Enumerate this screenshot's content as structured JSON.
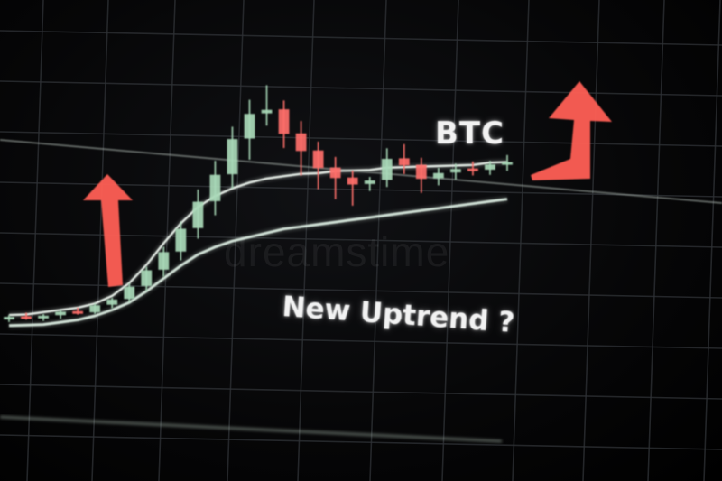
{
  "chart_data": {
    "type": "candlestick",
    "title": "BTC",
    "annotation": "New Uptrend ?",
    "watermark": "dreamstime",
    "grid": true,
    "colors": {
      "up": "#a9d9b8",
      "down": "#ff6f6a",
      "arrow": "#ff5f55",
      "ma_fast": "#eef6ef",
      "ma_slow": "#d9eadf",
      "background": "#050505"
    },
    "candles": [
      {
        "o": 20,
        "h": 22,
        "l": 18,
        "c": 21
      },
      {
        "o": 21,
        "h": 23,
        "l": 19,
        "c": 20
      },
      {
        "o": 20,
        "h": 22,
        "l": 18,
        "c": 21
      },
      {
        "o": 21,
        "h": 24,
        "l": 19,
        "c": 23
      },
      {
        "o": 23,
        "h": 25,
        "l": 21,
        "c": 22
      },
      {
        "o": 22,
        "h": 27,
        "l": 21,
        "c": 26
      },
      {
        "o": 26,
        "h": 30,
        "l": 24,
        "c": 29
      },
      {
        "o": 29,
        "h": 38,
        "l": 27,
        "c": 36
      },
      {
        "o": 36,
        "h": 47,
        "l": 33,
        "c": 45
      },
      {
        "o": 45,
        "h": 58,
        "l": 41,
        "c": 55
      },
      {
        "o": 55,
        "h": 72,
        "l": 50,
        "c": 68
      },
      {
        "o": 68,
        "h": 90,
        "l": 62,
        "c": 83
      },
      {
        "o": 83,
        "h": 106,
        "l": 75,
        "c": 98
      },
      {
        "o": 98,
        "h": 125,
        "l": 90,
        "c": 118
      },
      {
        "o": 118,
        "h": 140,
        "l": 106,
        "c": 132
      },
      {
        "o": 132,
        "h": 148,
        "l": 125,
        "c": 134
      },
      {
        "o": 134,
        "h": 139,
        "l": 112,
        "c": 120
      },
      {
        "o": 120,
        "h": 127,
        "l": 96,
        "c": 110
      },
      {
        "o": 110,
        "h": 115,
        "l": 88,
        "c": 100
      },
      {
        "o": 100,
        "h": 106,
        "l": 82,
        "c": 94
      },
      {
        "o": 94,
        "h": 98,
        "l": 78,
        "c": 90
      },
      {
        "o": 90,
        "h": 94,
        "l": 86,
        "c": 92
      },
      {
        "o": 92,
        "h": 110,
        "l": 88,
        "c": 104
      },
      {
        "o": 104,
        "h": 112,
        "l": 95,
        "c": 100
      },
      {
        "o": 100,
        "h": 104,
        "l": 84,
        "c": 92
      },
      {
        "o": 92,
        "h": 98,
        "l": 88,
        "c": 95
      },
      {
        "o": 95,
        "h": 100,
        "l": 91,
        "c": 97
      },
      {
        "o": 97,
        "h": 101,
        "l": 93,
        "c": 96
      },
      {
        "o": 96,
        "h": 101,
        "l": 93,
        "c": 99
      },
      {
        "o": 99,
        "h": 104,
        "l": 95,
        "c": 100
      }
    ],
    "ma_fast": [
      22,
      22,
      23,
      24,
      25,
      27,
      31,
      38,
      48,
      60,
      71,
      80,
      86,
      90,
      93,
      95,
      96,
      97,
      97,
      98,
      98,
      98,
      99,
      99,
      99,
      99,
      99,
      99,
      100,
      100
    ],
    "ma_slow": [
      16,
      16,
      16,
      17,
      18,
      20,
      23,
      27,
      33,
      40,
      47,
      53,
      57,
      60,
      62,
      64,
      66,
      67,
      68,
      69,
      70,
      71,
      72,
      73,
      74,
      75,
      76,
      77,
      78,
      79
    ],
    "support_level": 101,
    "ylim": [
      0,
      160
    ]
  },
  "labels": {
    "ticker": "BTC",
    "annotation": "New Uptrend ?",
    "watermark": "dreamstime"
  }
}
